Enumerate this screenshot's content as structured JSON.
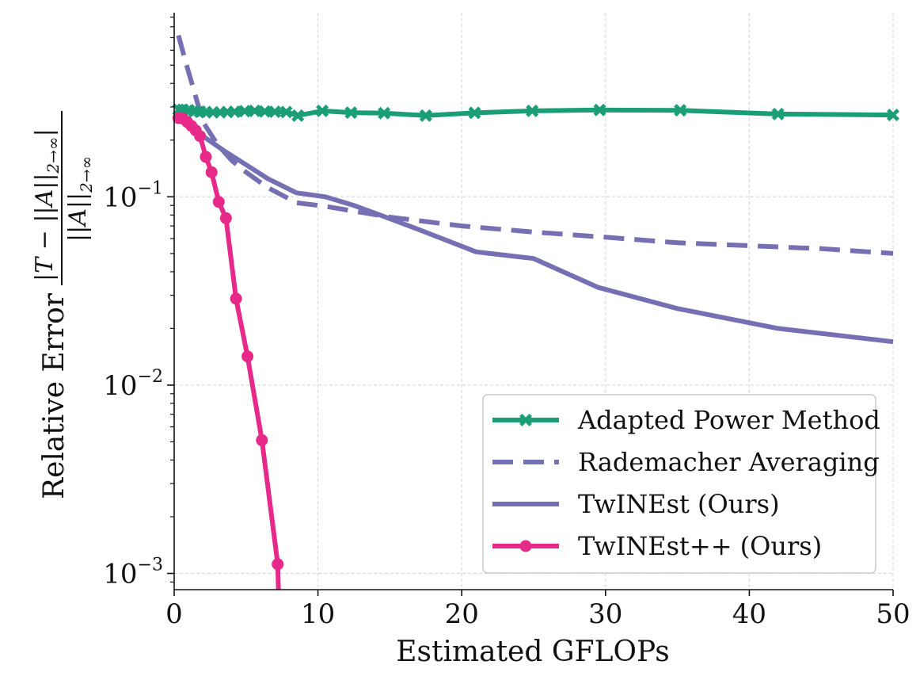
{
  "chart_data": {
    "type": "line",
    "title": "",
    "xlabel": "Estimated GFLOPs",
    "ylabel": "Relative Error",
    "ylabel_fraction": {
      "numerator": "|T − ||A||",
      "numerator_subscript": "2→∞",
      "numerator_close": "|",
      "denominator": "||A||",
      "denominator_subscript": "2→∞"
    },
    "y_scale": "log",
    "xlim": [
      0,
      50
    ],
    "ylim": [
      0.00082,
      0.95
    ],
    "x_ticks": [
      0,
      10,
      20,
      30,
      40,
      50
    ],
    "x_tick_labels": [
      "0",
      "10",
      "20",
      "30",
      "40",
      "50"
    ],
    "y_ticks": [
      0.1,
      0.01,
      0.001
    ],
    "y_tick_labels": [
      {
        "base": "10",
        "exp": "−1"
      },
      {
        "base": "10",
        "exp": "−2"
      },
      {
        "base": "10",
        "exp": "−3"
      }
    ],
    "grid": true,
    "legend_position": "lower-right",
    "series": [
      {
        "name": "Adapted Power Method",
        "color": "#1b9e77",
        "style": "solid",
        "marker": "x-filled",
        "x": [
          0.3,
          0.6,
          1.0,
          1.4,
          1.8,
          2.2,
          2.7,
          3.2,
          3.7,
          4.2,
          4.9,
          5.6,
          6.3,
          7.0,
          7.8,
          8.6,
          10.3,
          12.3,
          14.6,
          17.5,
          20.9,
          24.9,
          29.6,
          35.2,
          42.0,
          50.0
        ],
        "y": [
          0.29,
          0.29,
          0.288,
          0.285,
          0.283,
          0.282,
          0.281,
          0.281,
          0.282,
          0.283,
          0.285,
          0.286,
          0.284,
          0.283,
          0.282,
          0.27,
          0.286,
          0.28,
          0.278,
          0.27,
          0.279,
          0.286,
          0.289,
          0.288,
          0.275,
          0.272
        ]
      },
      {
        "name": "Rademacher Averaging",
        "color": "#7570b3",
        "style": "dashed",
        "marker": "none",
        "x": [
          0.3,
          0.8,
          1.5,
          2.0,
          3.0,
          4.0,
          5.0,
          6.5,
          8.5,
          10.5,
          15.0,
          20.0,
          25.0,
          30.0,
          35.0,
          40.0,
          45.0,
          50.0
        ],
        "y": [
          0.72,
          0.52,
          0.34,
          0.25,
          0.19,
          0.156,
          0.135,
          0.112,
          0.093,
          0.089,
          0.078,
          0.07,
          0.065,
          0.061,
          0.057,
          0.055,
          0.053,
          0.05
        ]
      },
      {
        "name": "TwINEst (Ours)",
        "color": "#7570b3",
        "style": "solid",
        "marker": "none",
        "x": [
          0.3,
          1.0,
          2.0,
          3.5,
          5.0,
          6.5,
          8.5,
          10.5,
          12.5,
          14.5,
          17.0,
          21.0,
          25.0,
          29.5,
          35.0,
          42.0,
          50.0
        ],
        "y": [
          0.27,
          0.25,
          0.21,
          0.175,
          0.148,
          0.125,
          0.105,
          0.1,
          0.09,
          0.079,
          0.067,
          0.051,
          0.047,
          0.033,
          0.0255,
          0.02,
          0.017
        ]
      },
      {
        "name": "TwINEst++ (Ours)",
        "color": "#e7298a",
        "style": "solid",
        "marker": "circle",
        "x": [
          0.3,
          0.6,
          0.9,
          1.2,
          1.5,
          1.8,
          2.2,
          2.6,
          3.1,
          3.6,
          4.3,
          5.1,
          6.1,
          7.2
        ],
        "y": [
          0.262,
          0.26,
          0.25,
          0.238,
          0.225,
          0.21,
          0.163,
          0.135,
          0.094,
          0.077,
          0.0288,
          0.0142,
          0.0051,
          0.00112
        ],
        "tail_to_axis_x": 7.25
      }
    ]
  }
}
